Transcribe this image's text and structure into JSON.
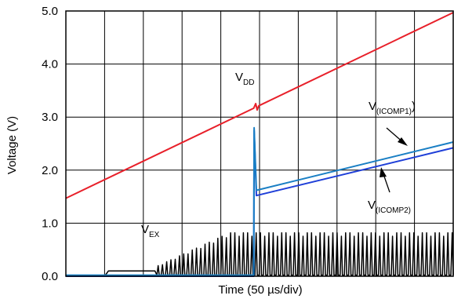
{
  "chart_data": {
    "type": "line",
    "xlabel": "Time (50 µs/div)",
    "ylabel": "Voltage (V)",
    "ylim": [
      0,
      5
    ],
    "y_ticks": [
      "0.0",
      "1.0",
      "2.0",
      "3.0",
      "4.0",
      "5.0"
    ],
    "x_divisions": 10,
    "grid": true,
    "x_tick_labels_shown": false,
    "series": [
      {
        "name": "V_DD",
        "label_main": "V",
        "label_sub": "DD",
        "color": "#e8202a",
        "shape": "linear ramp",
        "points": [
          [
            0,
            1.47
          ],
          [
            10,
            4.97
          ]
        ],
        "glitch_at": 4.9
      },
      {
        "name": "V_(ICOMP1)",
        "label_main": "V",
        "label_sub": "(ICOMP1)",
        "color": "#1a7fc4",
        "shape": "zero, spike to 2.8 at 4.85 div, then ramp",
        "points": [
          [
            0,
            0.02
          ],
          [
            4.85,
            0.02
          ],
          [
            4.86,
            2.8
          ],
          [
            4.92,
            1.62
          ],
          [
            10,
            2.53
          ]
        ]
      },
      {
        "name": "V_(ICOMP2)",
        "label_main": "V",
        "label_sub": "(ICOMP2)",
        "color": "#1f3fd8",
        "shape": "zero, spike to 2.75 at 4.85 div, then ramp",
        "points": [
          [
            0,
            0.0
          ],
          [
            4.85,
            0.0
          ],
          [
            4.86,
            2.75
          ],
          [
            4.92,
            1.52
          ],
          [
            10,
            2.42
          ]
        ]
      },
      {
        "name": "V_EX",
        "label_main": "V",
        "label_sub": "EX",
        "color": "#000000",
        "shape": "low step then oscillation bursts",
        "step": {
          "x_start": 1.0,
          "x_end": 2.3,
          "level": 0.1
        },
        "oscillation": {
          "x_start": 2.35,
          "x_end": 10,
          "period_div": 0.11,
          "envelope_max": 0.82,
          "envelope_rise_end": 4.2,
          "low_level": 0.0
        }
      }
    ]
  }
}
